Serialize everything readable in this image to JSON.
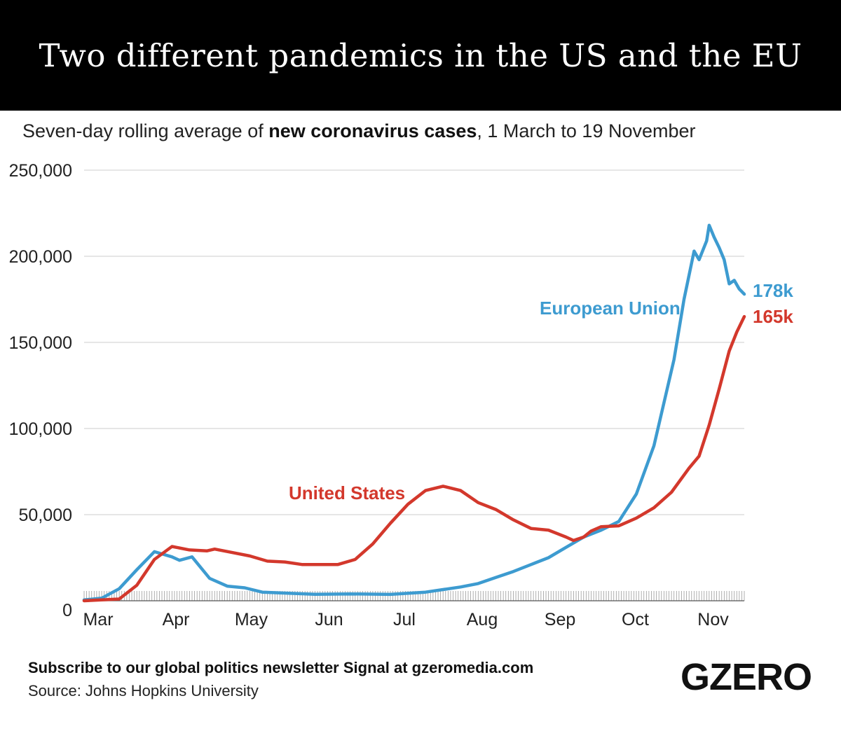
{
  "header": {
    "title": "Two different pandemics in the US and the EU"
  },
  "subtitle": {
    "before": "Seven-day rolling average of ",
    "bold": "new coronavirus cases",
    "after": ", 1 March to 19 November"
  },
  "footer": {
    "subscribe": "Subscribe to our global politics newsletter Signal at gzeromedia.com",
    "source": "Source: Johns Hopkins University",
    "logo": "GZERO"
  },
  "colors": {
    "eu": "#3d9bd0",
    "us": "#d3382c",
    "grid": "#cccccc",
    "title_bg": "#000000"
  },
  "chart_data": {
    "type": "line",
    "title": "Two different pandemics in the US and the EU",
    "subtitle": "Seven-day rolling average of new coronavirus cases, 1 March to 19 November",
    "x_range": [
      "2020-03-01",
      "2020-11-19"
    ],
    "ylim": [
      0,
      250000
    ],
    "yticks": [
      0,
      50000,
      100000,
      150000,
      200000,
      250000
    ],
    "ytick_labels": [
      "0",
      "50,000",
      "100,000",
      "150,000",
      "200,000",
      "250,000"
    ],
    "xticks": [
      {
        "label": "Mar",
        "date": "2020-03-01"
      },
      {
        "label": "Apr",
        "date": "2020-04-01"
      },
      {
        "label": "May",
        "date": "2020-05-01"
      },
      {
        "label": "Jun",
        "date": "2020-06-01"
      },
      {
        "label": "Jul",
        "date": "2020-07-01"
      },
      {
        "label": "Aug",
        "date": "2020-08-01"
      },
      {
        "label": "Sep",
        "date": "2020-09-01"
      },
      {
        "label": "Oct",
        "date": "2020-10-01"
      },
      {
        "label": "Nov",
        "date": "2020-11-01"
      }
    ],
    "grid": true,
    "series": [
      {
        "name": "European Union",
        "end_label": "178k",
        "color": "#3d9bd0",
        "points": [
          [
            "2020-03-01",
            500
          ],
          [
            "2020-03-08",
            1500
          ],
          [
            "2020-03-15",
            7000
          ],
          [
            "2020-03-22",
            18000
          ],
          [
            "2020-03-29",
            28500
          ],
          [
            "2020-04-05",
            25500
          ],
          [
            "2020-04-08",
            23500
          ],
          [
            "2020-04-13",
            25500
          ],
          [
            "2020-04-20",
            13000
          ],
          [
            "2020-04-27",
            8500
          ],
          [
            "2020-05-04",
            7500
          ],
          [
            "2020-05-11",
            5000
          ],
          [
            "2020-05-25",
            4200
          ],
          [
            "2020-06-01",
            3800
          ],
          [
            "2020-06-15",
            4000
          ],
          [
            "2020-07-01",
            3700
          ],
          [
            "2020-07-15",
            5000
          ],
          [
            "2020-07-29",
            8000
          ],
          [
            "2020-08-05",
            10000
          ],
          [
            "2020-08-12",
            13500
          ],
          [
            "2020-08-19",
            17000
          ],
          [
            "2020-08-26",
            21000
          ],
          [
            "2020-09-02",
            25000
          ],
          [
            "2020-09-09",
            31000
          ],
          [
            "2020-09-16",
            37000
          ],
          [
            "2020-09-23",
            41000
          ],
          [
            "2020-09-30",
            46000
          ],
          [
            "2020-10-07",
            62000
          ],
          [
            "2020-10-14",
            90000
          ],
          [
            "2020-10-18",
            115000
          ],
          [
            "2020-10-22",
            140000
          ],
          [
            "2020-10-26",
            175000
          ],
          [
            "2020-10-30",
            203000
          ],
          [
            "2020-11-01",
            198000
          ],
          [
            "2020-11-04",
            209000
          ],
          [
            "2020-11-05",
            218000
          ],
          [
            "2020-11-07",
            211000
          ],
          [
            "2020-11-09",
            205000
          ],
          [
            "2020-11-11",
            198000
          ],
          [
            "2020-11-13",
            184000
          ],
          [
            "2020-11-15",
            186000
          ],
          [
            "2020-11-17",
            181000
          ],
          [
            "2020-11-19",
            178000
          ]
        ]
      },
      {
        "name": "United States",
        "end_label": "165k",
        "color": "#d3382c",
        "points": [
          [
            "2020-03-01",
            0
          ],
          [
            "2020-03-15",
            1000
          ],
          [
            "2020-03-22",
            9000
          ],
          [
            "2020-03-29",
            24000
          ],
          [
            "2020-04-05",
            31500
          ],
          [
            "2020-04-12",
            29500
          ],
          [
            "2020-04-19",
            29000
          ],
          [
            "2020-04-22",
            30000
          ],
          [
            "2020-04-29",
            28000
          ],
          [
            "2020-05-06",
            26000
          ],
          [
            "2020-05-13",
            23000
          ],
          [
            "2020-05-20",
            22500
          ],
          [
            "2020-05-27",
            21000
          ],
          [
            "2020-06-03",
            21000
          ],
          [
            "2020-06-10",
            21000
          ],
          [
            "2020-06-17",
            24000
          ],
          [
            "2020-06-24",
            33000
          ],
          [
            "2020-07-01",
            45000
          ],
          [
            "2020-07-08",
            56000
          ],
          [
            "2020-07-15",
            64000
          ],
          [
            "2020-07-22",
            66500
          ],
          [
            "2020-07-29",
            64000
          ],
          [
            "2020-08-05",
            57000
          ],
          [
            "2020-08-12",
            53000
          ],
          [
            "2020-08-19",
            47000
          ],
          [
            "2020-08-26",
            42000
          ],
          [
            "2020-09-02",
            41000
          ],
          [
            "2020-09-09",
            37000
          ],
          [
            "2020-09-12",
            35000
          ],
          [
            "2020-09-16",
            37000
          ],
          [
            "2020-09-19",
            40500
          ],
          [
            "2020-09-23",
            43000
          ],
          [
            "2020-09-30",
            43500
          ],
          [
            "2020-10-07",
            48000
          ],
          [
            "2020-10-14",
            54000
          ],
          [
            "2020-10-21",
            63000
          ],
          [
            "2020-10-28",
            77000
          ],
          [
            "2020-11-01",
            84000
          ],
          [
            "2020-11-05",
            102000
          ],
          [
            "2020-11-09",
            123000
          ],
          [
            "2020-11-13",
            145000
          ],
          [
            "2020-11-16",
            156000
          ],
          [
            "2020-11-19",
            165000
          ]
        ]
      }
    ]
  }
}
